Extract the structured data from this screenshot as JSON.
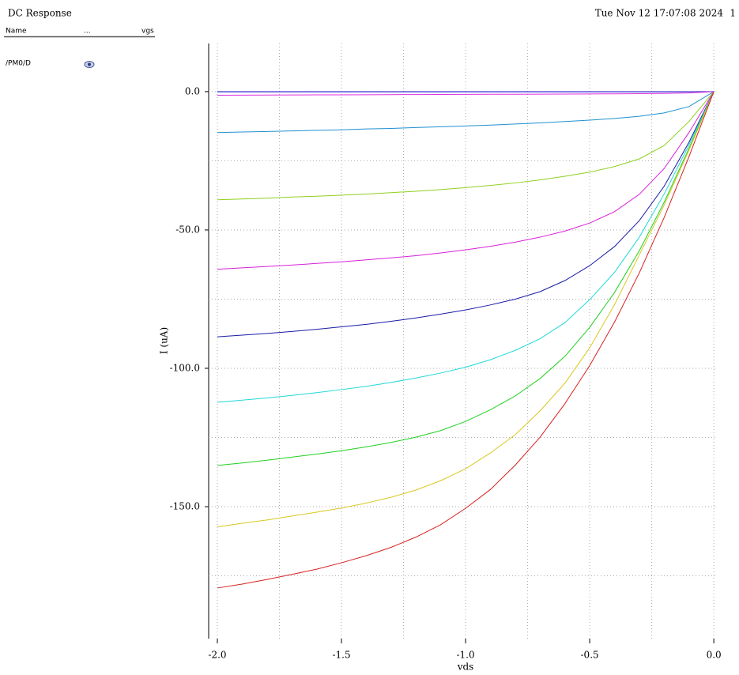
{
  "header": {
    "title": "DC Response",
    "timestamp": "Tue Nov 12 17:07:08 2024",
    "page": "1"
  },
  "legend": {
    "columns": [
      "Name",
      "...",
      "vgs"
    ],
    "rows": [
      [
        "/PM0/D"
      ]
    ]
  },
  "chart_data": {
    "type": "line",
    "x_label": "vds",
    "y_label": "I (uA)",
    "x": [
      -2.0,
      -1.9,
      -1.8,
      -1.7,
      -1.6,
      -1.5,
      -1.4,
      -1.3,
      -1.2,
      -1.1,
      -1.0,
      -0.9,
      -0.8,
      -0.7,
      -0.6,
      -0.5,
      -0.4,
      -0.3,
      -0.2,
      -0.1,
      0.0
    ],
    "series": [
      {
        "color": "#6a4cd8",
        "values": [
          0,
          0,
          0,
          0,
          0,
          0,
          0,
          0,
          0,
          0,
          0,
          0,
          0,
          0,
          0,
          0,
          0,
          0,
          0,
          0,
          0
        ]
      },
      {
        "color": "#3a3ad8",
        "values": [
          -0.1,
          -0.1,
          -0.1,
          -0.1,
          -0.1,
          -0.1,
          -0.1,
          -0.1,
          -0.1,
          -0.1,
          -0.1,
          -0.1,
          -0.1,
          -0.1,
          -0.1,
          -0.1,
          -0.1,
          -0.1,
          -0.1,
          -0.1,
          0
        ]
      },
      {
        "color": "#e030e0",
        "values": [
          -1.3,
          -1.27,
          -1.24,
          -1.21,
          -1.18,
          -1.15,
          -1.12,
          -1.09,
          -1.06,
          -1.03,
          -1.0,
          -0.97,
          -0.94,
          -0.91,
          -0.88,
          -0.85,
          -0.8,
          -0.74,
          -0.65,
          -0.5,
          0
        ]
      },
      {
        "color": "#2090d0",
        "values": [
          -14.8,
          -14.6,
          -14.4,
          -14.2,
          -14,
          -13.8,
          -13.5,
          -13.3,
          -13,
          -12.7,
          -12.4,
          -12.1,
          -11.7,
          -11.3,
          -10.8,
          -10.3,
          -9.7,
          -8.9,
          -7.7,
          -5.4,
          0
        ]
      },
      {
        "color": "#8ed020",
        "values": [
          -39.1,
          -38.8,
          -38.5,
          -38.1,
          -37.8,
          -37.4,
          -37,
          -36.5,
          -36,
          -35.4,
          -34.7,
          -33.9,
          -33,
          -31.9,
          -30.6,
          -29.1,
          -27.1,
          -24.3,
          -19.5,
          -10.8,
          0
        ]
      },
      {
        "color": "#d820d8",
        "values": [
          -64.2,
          -63.7,
          -63.2,
          -62.7,
          -62.1,
          -61.5,
          -60.8,
          -60.1,
          -59.3,
          -58.3,
          -57.2,
          -55.9,
          -54.4,
          -52.6,
          -50.4,
          -47.5,
          -43.4,
          -37.1,
          -27.8,
          -14.8,
          0
        ]
      },
      {
        "color": "#1a1aa8",
        "values": [
          -88.6,
          -88,
          -87.4,
          -86.7,
          -85.9,
          -85,
          -84.1,
          -83,
          -81.8,
          -80.4,
          -78.9,
          -77.1,
          -75,
          -72.3,
          -68.3,
          -62.9,
          -56,
          -46.6,
          -34.2,
          -18.3,
          0
        ]
      },
      {
        "color": "#20d8d8",
        "values": [
          -112.3,
          -111.5,
          -110.7,
          -109.8,
          -108.8,
          -107.7,
          -106.5,
          -105.1,
          -103.5,
          -101.7,
          -99.6,
          -96.9,
          -93.5,
          -89.3,
          -83.5,
          -75.2,
          -65.3,
          -52.6,
          -37,
          -19.3,
          0
        ]
      },
      {
        "color": "#20d020",
        "values": [
          -135.1,
          -134.2,
          -133.2,
          -132.1,
          -131,
          -129.8,
          -128.4,
          -126.8,
          -124.9,
          -122.5,
          -119.2,
          -115,
          -110,
          -103.7,
          -95.7,
          -85.2,
          -72.6,
          -57.5,
          -40,
          -20.5,
          0
        ]
      },
      {
        "color": "#d8c820",
        "values": [
          -157.3,
          -156,
          -154.8,
          -153.4,
          -152,
          -150.5,
          -148.7,
          -146.6,
          -144,
          -140.6,
          -136.3,
          -130.6,
          -124,
          -115.4,
          -105.4,
          -92.6,
          -77,
          -59,
          -41,
          -21.2,
          0
        ]
      },
      {
        "color": "#d82020",
        "values": [
          -179.4,
          -178,
          -176.3,
          -174.5,
          -172.6,
          -170.3,
          -167.7,
          -164.7,
          -161,
          -156.5,
          -150.6,
          -143.8,
          -135,
          -124.9,
          -112.8,
          -99,
          -83.3,
          -65.5,
          -45.5,
          -23.5,
          0
        ]
      }
    ],
    "xlim": [
      -2.035,
      0.006
    ],
    "ylim": [
      -197.7,
      17.4
    ],
    "xticks": [
      {
        "value": -2.0,
        "label": "-2.0"
      },
      {
        "value": -1.5,
        "label": "-1.5"
      },
      {
        "value": -1.0,
        "label": "-1.0"
      },
      {
        "value": -0.5,
        "label": "-0.5"
      },
      {
        "value": 0,
        "label": "0.0"
      }
    ],
    "yticks": [
      {
        "value": -150,
        "label": "-150.0"
      },
      {
        "value": -100,
        "label": "-100.0"
      },
      {
        "value": -50,
        "label": "-50.0"
      },
      {
        "value": 0,
        "label": "0.0"
      }
    ],
    "xgrid": [
      -2.0,
      -1.75,
      -1.5,
      -1.25,
      -1.0,
      -0.75,
      -0.5,
      -0.25,
      0
    ],
    "ygrid": [
      -175,
      -150,
      -125,
      -100,
      -75,
      -50,
      -25,
      0
    ],
    "grid": true
  }
}
